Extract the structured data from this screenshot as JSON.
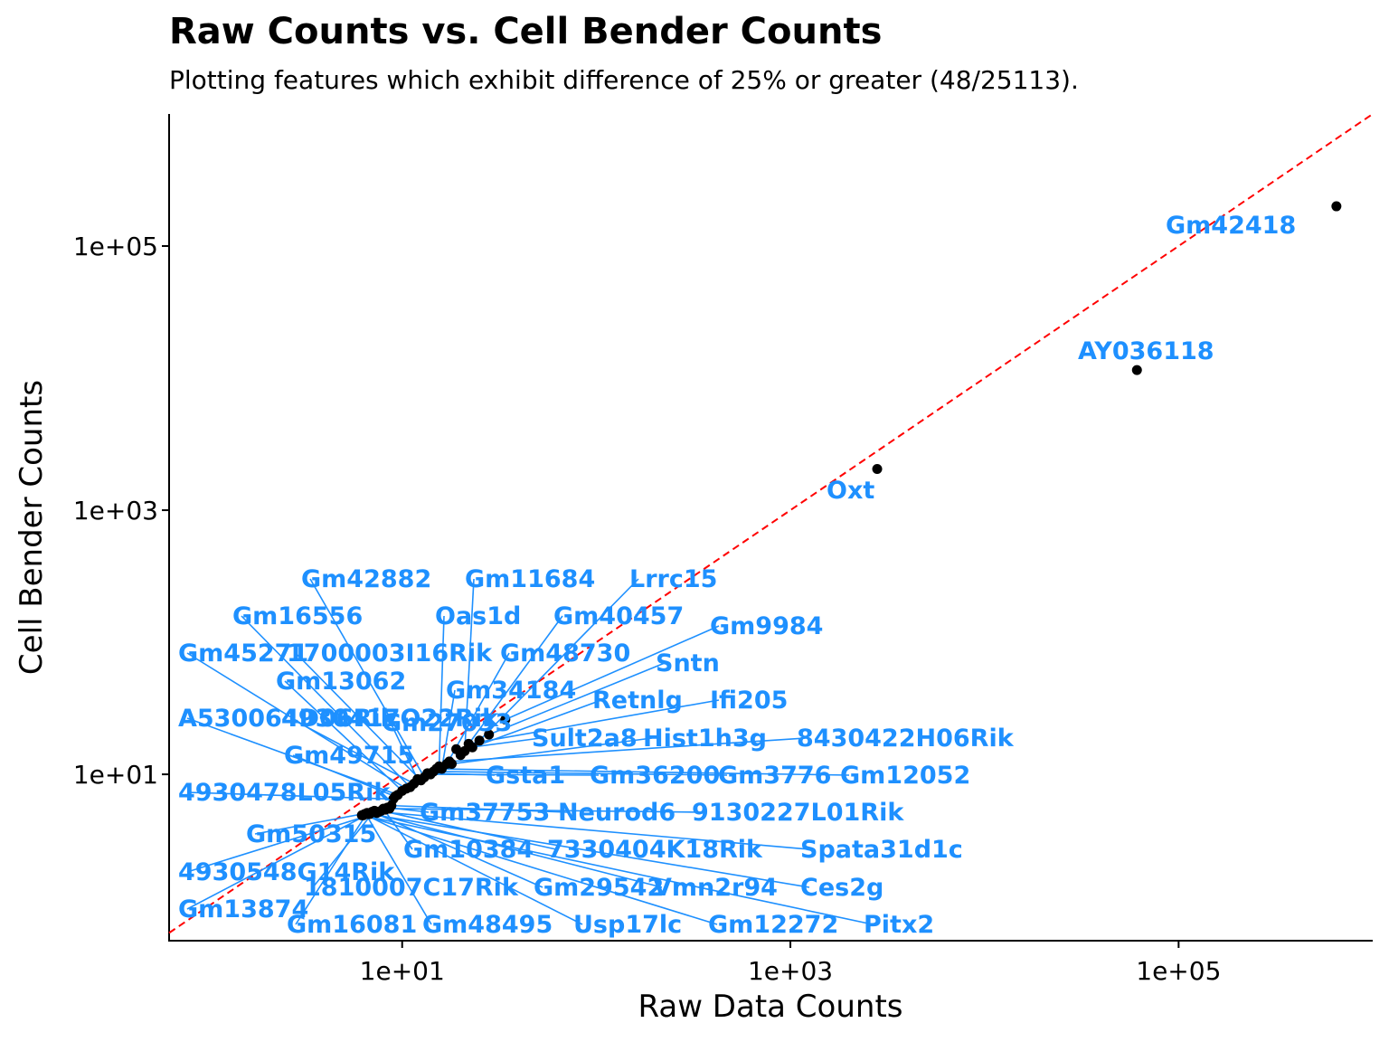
{
  "chart_data": {
    "type": "scatter",
    "title": "Raw Counts vs. Cell Bender Counts",
    "subtitle": "Plotting features which exhibit difference of 25% or greater (48/25113).",
    "xlabel": "Raw Data Counts",
    "ylabel": "Cell Bender Counts",
    "x_scale": "log10",
    "y_scale": "log10",
    "xlim": [
      0.63,
      1000000
    ],
    "ylim": [
      0.55,
      1000000
    ],
    "x_ticks": [
      {
        "value": 10,
        "label": "1e+01"
      },
      {
        "value": 1000,
        "label": "1e+03"
      },
      {
        "value": 100000,
        "label": "1e+05"
      }
    ],
    "y_ticks": [
      {
        "value": 10,
        "label": "1e+01"
      },
      {
        "value": 1000,
        "label": "1e+03"
      },
      {
        "value": 100000,
        "label": "1e+05"
      }
    ],
    "reference_line": {
      "type": "y = x",
      "style": "dashed",
      "color": "#ff0000"
    },
    "point_color": "#000000",
    "label_color": "#1e90ff",
    "points": [
      {
        "label": "Gm42418",
        "x": 650000,
        "y": 200000
      },
      {
        "label": "AY036118",
        "x": 61000,
        "y": 11500
      },
      {
        "label": "Oxt",
        "x": 2800,
        "y": 2050
      },
      {
        "label": "Gm9984",
        "x": 34,
        "y": 26
      },
      {
        "label": "Sntn",
        "x": 28,
        "y": 20
      },
      {
        "label": "Lrrc15",
        "x": 25,
        "y": 18
      },
      {
        "label": "Retnlg",
        "x": 23,
        "y": 16
      },
      {
        "label": "Ifi205",
        "x": 22,
        "y": 17
      },
      {
        "label": "Gm11684",
        "x": 21,
        "y": 15
      },
      {
        "label": "Gm40457",
        "x": 20,
        "y": 14
      },
      {
        "label": "Sult2a8",
        "x": 19,
        "y": 15.5
      },
      {
        "label": "Hist1h3g",
        "x": 18,
        "y": 12
      },
      {
        "label": "8430422H06Rik",
        "x": 17.5,
        "y": 12.5
      },
      {
        "label": "Gm48730",
        "x": 17,
        "y": 12
      },
      {
        "label": "Gm34184",
        "x": 16,
        "y": 11
      },
      {
        "label": "Oas1d",
        "x": 15.5,
        "y": 11.5
      },
      {
        "label": "Gm12052",
        "x": 15,
        "y": 11
      },
      {
        "label": "Gm3776",
        "x": 14.5,
        "y": 10.5
      },
      {
        "label": "Gm36200",
        "x": 14,
        "y": 10
      },
      {
        "label": "Gsta1",
        "x": 13.5,
        "y": 10.2
      },
      {
        "label": "Gm42882",
        "x": 13,
        "y": 9.5
      },
      {
        "label": "1700003I16Rik",
        "x": 12.5,
        "y": 9
      },
      {
        "label": "Gm27033",
        "x": 12,
        "y": 9.2
      },
      {
        "label": "4930417O22Rik",
        "x": 11.5,
        "y": 8.5
      },
      {
        "label": "Gm16556",
        "x": 11,
        "y": 8
      },
      {
        "label": "Gm45271",
        "x": 10.5,
        "y": 7.8
      },
      {
        "label": "Gm13062",
        "x": 10,
        "y": 7.5
      },
      {
        "label": "A530064D06Rik",
        "x": 9.5,
        "y": 7
      },
      {
        "label": "Gm49715",
        "x": 9.2,
        "y": 6.8
      },
      {
        "label": "4930478L05Rik",
        "x": 9,
        "y": 6.5
      },
      {
        "label": "Neurod6",
        "x": 8.8,
        "y": 5.8
      },
      {
        "label": "9130227L01Rik",
        "x": 8.6,
        "y": 5.5
      },
      {
        "label": "Gm37753",
        "x": 8.4,
        "y": 5.6
      },
      {
        "label": "Gm50315",
        "x": 8.2,
        "y": 5.4
      },
      {
        "label": "Gm10384",
        "x": 8,
        "y": 5.5
      },
      {
        "label": "7330404K18Rik",
        "x": 7.8,
        "y": 5.3
      },
      {
        "label": "Spata31d1c",
        "x": 7.6,
        "y": 5.2
      },
      {
        "label": "4930548G14Rik",
        "x": 7.4,
        "y": 5.1
      },
      {
        "label": "1810007C17Rik",
        "x": 7.2,
        "y": 5.3
      },
      {
        "label": "Gm29542",
        "x": 7,
        "y": 5.2
      },
      {
        "label": "Vmn2r94",
        "x": 6.9,
        "y": 5.1
      },
      {
        "label": "Ces2g",
        "x": 6.8,
        "y": 5
      },
      {
        "label": "Gm13874",
        "x": 6.7,
        "y": 5
      },
      {
        "label": "Gm16081",
        "x": 6.6,
        "y": 5.1
      },
      {
        "label": "Gm48495",
        "x": 6.5,
        "y": 5
      },
      {
        "label": "Usp17lc",
        "x": 6.4,
        "y": 5
      },
      {
        "label": "Gm12272",
        "x": 6.3,
        "y": 4.9
      },
      {
        "label": "Pitx2",
        "x": 6.2,
        "y": 4.9
      }
    ]
  }
}
